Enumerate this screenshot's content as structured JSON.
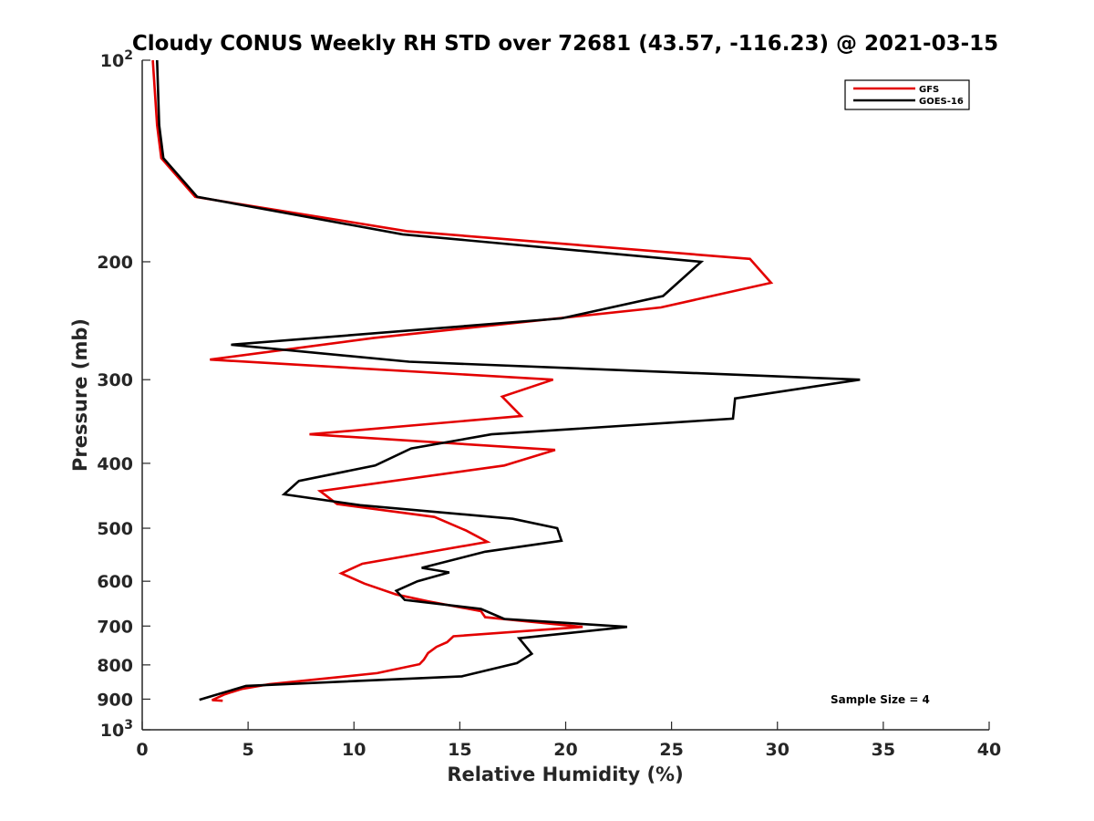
{
  "chart_data": {
    "type": "line",
    "title": "Cloudy CONUS Weekly RH STD over 72681 (43.57, -116.23) @ 2021-03-15",
    "xlabel": "Relative Humidity (%)",
    "ylabel": "Pressure (mb)",
    "xlim": [
      0,
      40
    ],
    "ylim": [
      100,
      1000
    ],
    "y_scale": "log",
    "y_reversed": true,
    "grid": false,
    "x_ticks": [
      0,
      5,
      10,
      15,
      20,
      25,
      30,
      35,
      40
    ],
    "x_tick_labels": [
      "0",
      "5",
      "10",
      "15",
      "20",
      "25",
      "30",
      "35",
      "40"
    ],
    "y_ticks": [
      200,
      300,
      400,
      500,
      600,
      700,
      800,
      900
    ],
    "y_tick_labels": [
      "200",
      "300",
      "400",
      "500",
      "600",
      "700",
      "800",
      "900"
    ],
    "y_decade_ticks": [
      {
        "value": 100,
        "base": "10",
        "exp": "2"
      },
      {
        "value": 1000,
        "base": "10",
        "exp": "3"
      }
    ],
    "legend": {
      "placement": "top-right",
      "entries": [
        "GFS",
        "GOES-16"
      ]
    },
    "annotation": "Sample Size = 4",
    "series": [
      {
        "name": "GFS",
        "color": "#e30000",
        "points": [
          [
            0.5,
            100
          ],
          [
            0.7,
            125
          ],
          [
            0.9,
            140
          ],
          [
            2.5,
            160
          ],
          [
            12.5,
            180
          ],
          [
            28.7,
            198
          ],
          [
            29.7,
            215
          ],
          [
            24.5,
            234
          ],
          [
            10.9,
            260
          ],
          [
            3.2,
            280
          ],
          [
            19.4,
            300
          ],
          [
            17,
            318
          ],
          [
            17.9,
            340
          ],
          [
            7.9,
            362
          ],
          [
            19.5,
            382
          ],
          [
            17.1,
            403
          ],
          [
            8.4,
            440
          ],
          [
            9.2,
            460
          ],
          [
            13.8,
            481
          ],
          [
            15.3,
            504
          ],
          [
            16.3,
            524
          ],
          [
            10.4,
            565
          ],
          [
            9.4,
            584
          ],
          [
            10.5,
            605
          ],
          [
            12,
            628
          ],
          [
            13.5,
            643
          ],
          [
            16,
            665
          ],
          [
            16.2,
            679
          ],
          [
            20.8,
            702
          ],
          [
            14.7,
            725
          ],
          [
            14.4,
            740
          ],
          [
            13.9,
            752
          ],
          [
            13.5,
            768
          ],
          [
            13.3,
            786
          ],
          [
            13.1,
            798
          ],
          [
            11.1,
            823
          ],
          [
            6,
            855
          ],
          [
            4.7,
            869
          ],
          [
            3.9,
            885
          ],
          [
            3.3,
            903
          ],
          [
            3.8,
            905
          ]
        ]
      },
      {
        "name": "GOES-16",
        "color": "#000000",
        "points": [
          [
            0.7,
            100
          ],
          [
            0.8,
            125
          ],
          [
            1,
            140
          ],
          [
            2.6,
            160
          ],
          [
            12.3,
            182
          ],
          [
            26.4,
            200
          ],
          [
            24.6,
            225
          ],
          [
            19.8,
            243
          ],
          [
            4.2,
            266
          ],
          [
            12.6,
            282
          ],
          [
            33.9,
            300
          ],
          [
            28,
            320
          ],
          [
            27.9,
            343
          ],
          [
            16.5,
            362
          ],
          [
            12.7,
            380
          ],
          [
            11,
            403
          ],
          [
            7.4,
            425
          ],
          [
            6.7,
            445
          ],
          [
            10.3,
            462
          ],
          [
            17.5,
            484
          ],
          [
            19.6,
            500
          ],
          [
            19.8,
            522
          ],
          [
            16.2,
            542
          ],
          [
            13.2,
            573
          ],
          [
            14.5,
            582
          ],
          [
            13,
            600
          ],
          [
            12,
            620
          ],
          [
            12.4,
            640
          ],
          [
            16,
            660
          ],
          [
            17.1,
            683
          ],
          [
            22.9,
            702
          ],
          [
            17.8,
            730
          ],
          [
            18.4,
            770
          ],
          [
            17.7,
            795
          ],
          [
            15.1,
            832
          ],
          [
            4.9,
            860
          ],
          [
            2.7,
            902
          ]
        ]
      }
    ]
  }
}
